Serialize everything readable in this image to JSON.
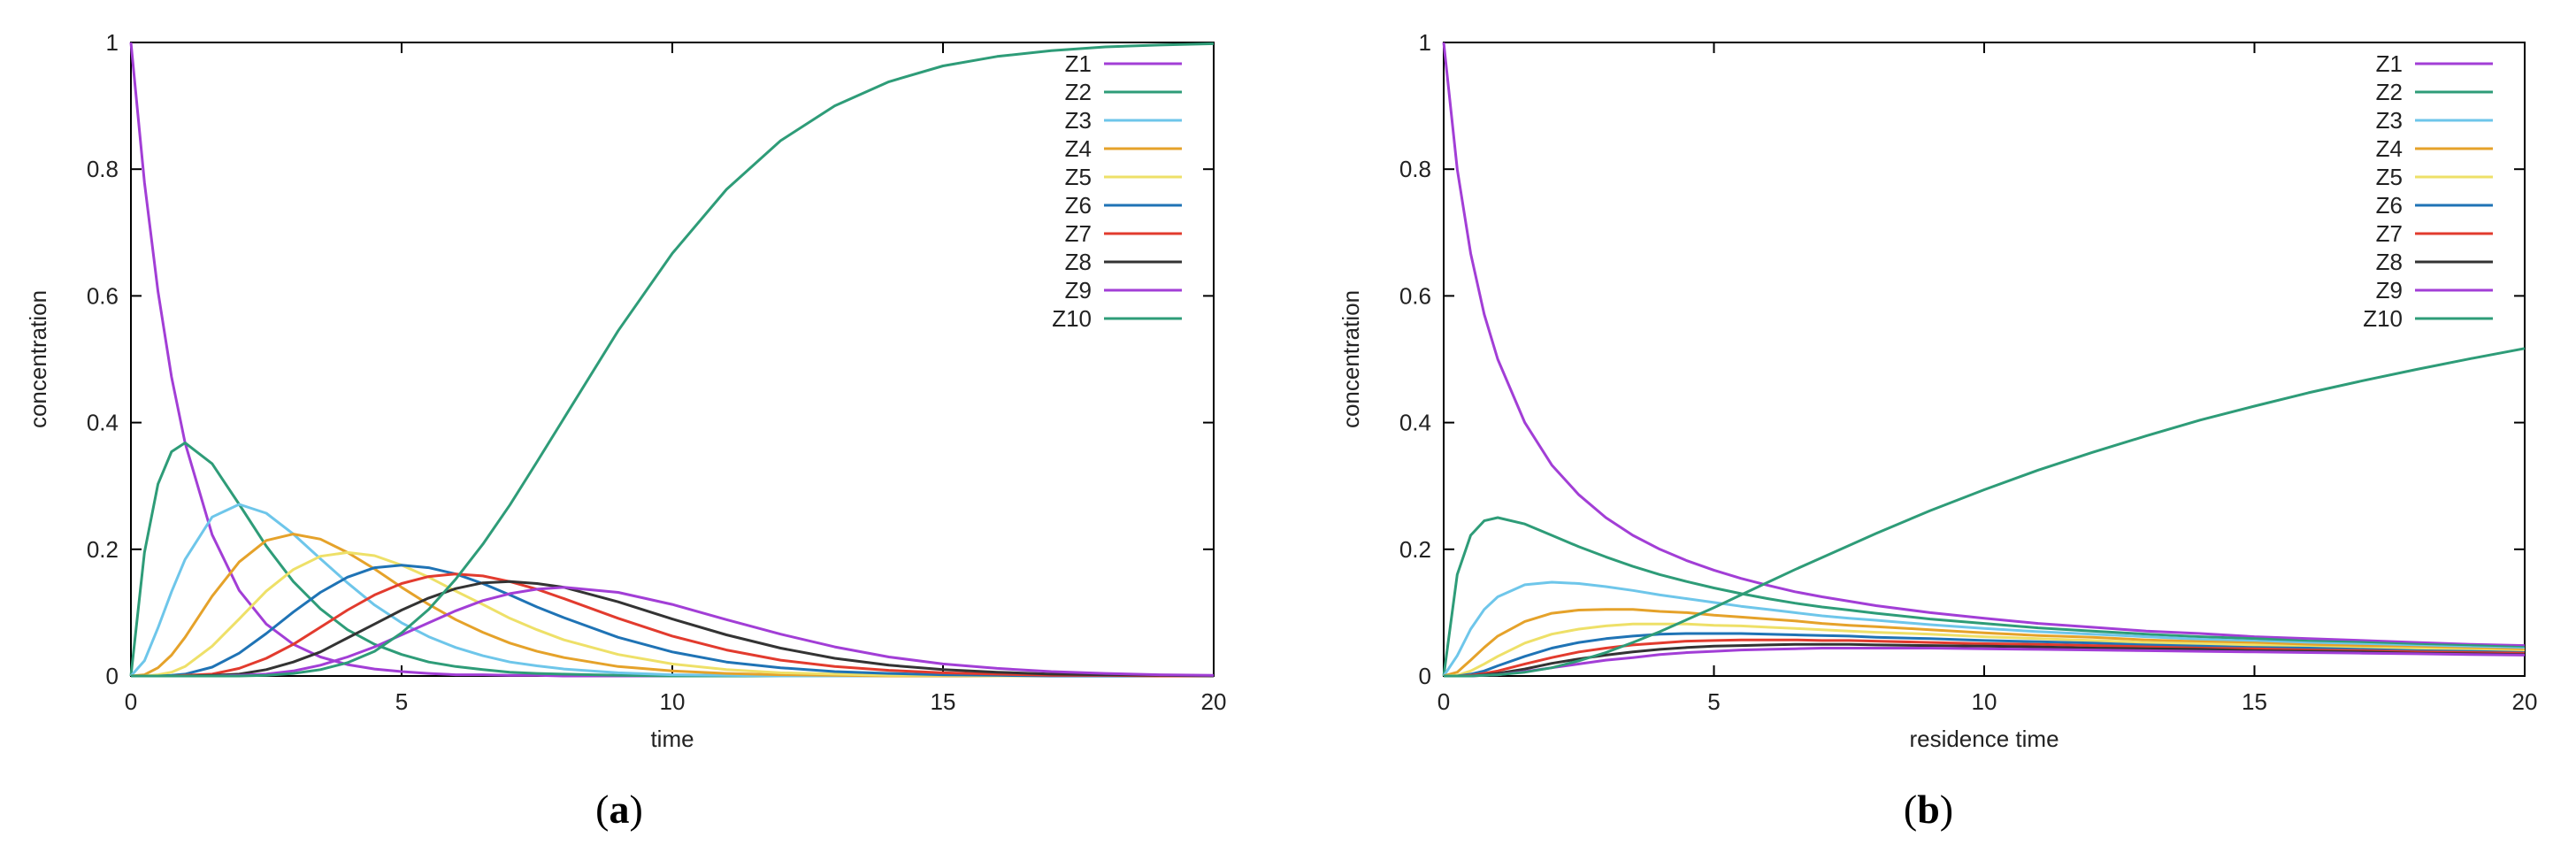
{
  "figure": {
    "panels": [
      {
        "label_open": "(",
        "label_letter": "a",
        "label_close": ")"
      },
      {
        "label_open": "(",
        "label_letter": "b",
        "label_close": ")"
      }
    ]
  },
  "colors": {
    "Z1": "#a23ed6",
    "Z2": "#2e9c78",
    "Z3": "#6ec6ea",
    "Z4": "#e5a22a",
    "Z5": "#eee068",
    "Z6": "#1f73b5",
    "Z7": "#e23b2e",
    "Z8": "#333333",
    "Z9": "#a23ed6",
    "Z10": "#2e9c78"
  },
  "chart_data": [
    {
      "type": "line",
      "title": "",
      "xlabel": "time",
      "ylabel": "concentration",
      "xlim": [
        0,
        20
      ],
      "ylim": [
        0,
        1
      ],
      "xticks": [
        0,
        5,
        10,
        15,
        20
      ],
      "yticks": [
        0,
        0.2,
        0.4,
        0.6,
        0.8,
        1
      ],
      "ytick_labels": [
        "0",
        "0.2",
        "0.4",
        "0.6",
        "0.8",
        "1"
      ],
      "legend_position": "top-right",
      "grid": false,
      "x": [
        0,
        0.25,
        0.5,
        0.75,
        1,
        1.5,
        2,
        2.5,
        3,
        3.5,
        4,
        4.5,
        5,
        5.5,
        6,
        6.5,
        7,
        7.5,
        8,
        9,
        10,
        11,
        12,
        13,
        14,
        15,
        16,
        17,
        18,
        19,
        20
      ],
      "series": [
        {
          "name": "Z1",
          "values": [
            1,
            0.779,
            0.607,
            0.472,
            0.368,
            0.223,
            0.135,
            0.082,
            0.05,
            0.03,
            0.018,
            0.011,
            0.007,
            0.004,
            0.002,
            0.002,
            0.001,
            0.001,
            0,
            0,
            0,
            0,
            0,
            0,
            0,
            0,
            0,
            0,
            0,
            0,
            0
          ]
        },
        {
          "name": "Z2",
          "values": [
            0,
            0.195,
            0.303,
            0.354,
            0.368,
            0.335,
            0.271,
            0.205,
            0.149,
            0.106,
            0.073,
            0.05,
            0.034,
            0.022,
            0.015,
            0.01,
            0.006,
            0.004,
            0.003,
            0.001,
            0,
            0,
            0,
            0,
            0,
            0,
            0,
            0,
            0,
            0,
            0
          ]
        },
        {
          "name": "Z3",
          "values": [
            0,
            0.024,
            0.076,
            0.133,
            0.184,
            0.251,
            0.271,
            0.257,
            0.224,
            0.185,
            0.147,
            0.112,
            0.084,
            0.062,
            0.045,
            0.032,
            0.022,
            0.016,
            0.011,
            0.005,
            0.002,
            0.001,
            0,
            0,
            0,
            0,
            0,
            0,
            0,
            0,
            0
          ]
        },
        {
          "name": "Z4",
          "values": [
            0,
            0.002,
            0.013,
            0.033,
            0.061,
            0.126,
            0.18,
            0.214,
            0.224,
            0.216,
            0.195,
            0.169,
            0.14,
            0.113,
            0.089,
            0.069,
            0.052,
            0.039,
            0.029,
            0.015,
            0.008,
            0.004,
            0.002,
            0.001,
            0,
            0,
            0,
            0,
            0,
            0,
            0
          ]
        },
        {
          "name": "Z5",
          "values": [
            0,
            0,
            0.002,
            0.006,
            0.015,
            0.047,
            0.09,
            0.134,
            0.168,
            0.189,
            0.195,
            0.19,
            0.175,
            0.156,
            0.134,
            0.113,
            0.091,
            0.073,
            0.057,
            0.034,
            0.019,
            0.01,
            0.005,
            0.003,
            0.001,
            0.001,
            0,
            0,
            0,
            0,
            0
          ]
        },
        {
          "name": "Z6",
          "values": [
            0,
            0,
            0,
            0.001,
            0.003,
            0.014,
            0.036,
            0.067,
            0.101,
            0.132,
            0.156,
            0.171,
            0.175,
            0.171,
            0.161,
            0.146,
            0.128,
            0.109,
            0.092,
            0.061,
            0.038,
            0.022,
            0.013,
            0.007,
            0.004,
            0.002,
            0.001,
            0,
            0,
            0,
            0
          ]
        },
        {
          "name": "Z7",
          "values": [
            0,
            0,
            0,
            0,
            0.001,
            0.003,
            0.012,
            0.028,
            0.05,
            0.077,
            0.104,
            0.128,
            0.146,
            0.157,
            0.161,
            0.158,
            0.149,
            0.137,
            0.122,
            0.091,
            0.063,
            0.041,
            0.025,
            0.015,
            0.009,
            0.005,
            0.003,
            0.001,
            0.001,
            0,
            0
          ]
        },
        {
          "name": "Z8",
          "values": [
            0,
            0,
            0,
            0,
            0,
            0.001,
            0.003,
            0.01,
            0.022,
            0.038,
            0.06,
            0.082,
            0.104,
            0.123,
            0.138,
            0.147,
            0.149,
            0.146,
            0.14,
            0.117,
            0.09,
            0.065,
            0.044,
            0.028,
            0.017,
            0.01,
            0.006,
            0.003,
            0.002,
            0.001,
            0
          ]
        },
        {
          "name": "Z9",
          "values": [
            0,
            0,
            0,
            0,
            0,
            0,
            0.001,
            0.003,
            0.008,
            0.017,
            0.03,
            0.046,
            0.065,
            0.084,
            0.103,
            0.119,
            0.13,
            0.137,
            0.14,
            0.132,
            0.113,
            0.089,
            0.066,
            0.046,
            0.03,
            0.019,
            0.012,
            0.007,
            0.004,
            0.002,
            0.001
          ]
        },
        {
          "name": "Z10",
          "values": [
            0,
            0,
            0,
            0,
            0,
            0,
            0,
            0.001,
            0.004,
            0.01,
            0.021,
            0.039,
            0.068,
            0.105,
            0.153,
            0.208,
            0.27,
            0.338,
            0.407,
            0.545,
            0.667,
            0.768,
            0.845,
            0.9,
            0.938,
            0.963,
            0.978,
            0.987,
            0.993,
            0.996,
            0.998
          ]
        }
      ]
    },
    {
      "type": "line",
      "title": "",
      "xlabel": "residence time",
      "ylabel": "concentration",
      "xlim": [
        0,
        20
      ],
      "ylim": [
        0,
        1
      ],
      "xticks": [
        0,
        5,
        10,
        15,
        20
      ],
      "yticks": [
        0,
        0.2,
        0.4,
        0.6,
        0.8,
        1
      ],
      "ytick_labels": [
        "0",
        "0.2",
        "0.4",
        "0.6",
        "0.8",
        "1"
      ],
      "legend_position": "top-right",
      "grid": false,
      "x": [
        0,
        0.25,
        0.5,
        0.75,
        1,
        1.5,
        2,
        2.5,
        3,
        3.5,
        4,
        4.5,
        5,
        5.5,
        6,
        6.5,
        7,
        7.5,
        8,
        9,
        10,
        11,
        12,
        13,
        14,
        15,
        16,
        17,
        18,
        19,
        20
      ],
      "series": [
        {
          "name": "Z1",
          "values": [
            1,
            0.8,
            0.667,
            0.571,
            0.5,
            0.4,
            0.333,
            0.286,
            0.25,
            0.222,
            0.2,
            0.182,
            0.167,
            0.154,
            0.143,
            0.133,
            0.125,
            0.118,
            0.111,
            0.1,
            0.091,
            0.083,
            0.077,
            0.071,
            0.067,
            0.062,
            0.059,
            0.056,
            0.053,
            0.05,
            0.048
          ]
        },
        {
          "name": "Z2",
          "values": [
            0,
            0.16,
            0.222,
            0.245,
            0.25,
            0.24,
            0.222,
            0.204,
            0.188,
            0.173,
            0.16,
            0.149,
            0.139,
            0.13,
            0.122,
            0.115,
            0.109,
            0.104,
            0.099,
            0.09,
            0.083,
            0.076,
            0.071,
            0.066,
            0.062,
            0.059,
            0.055,
            0.053,
            0.05,
            0.048,
            0.045
          ]
        },
        {
          "name": "Z3",
          "values": [
            0,
            0.032,
            0.074,
            0.105,
            0.125,
            0.144,
            0.148,
            0.146,
            0.141,
            0.135,
            0.128,
            0.122,
            0.116,
            0.11,
            0.105,
            0.1,
            0.095,
            0.091,
            0.088,
            0.081,
            0.075,
            0.07,
            0.066,
            0.062,
            0.058,
            0.055,
            0.052,
            0.05,
            0.047,
            0.045,
            0.043
          ]
        },
        {
          "name": "Z4",
          "values": [
            0,
            0.006,
            0.025,
            0.045,
            0.063,
            0.086,
            0.099,
            0.104,
            0.105,
            0.105,
            0.102,
            0.1,
            0.096,
            0.093,
            0.09,
            0.087,
            0.083,
            0.08,
            0.078,
            0.073,
            0.068,
            0.064,
            0.061,
            0.057,
            0.054,
            0.052,
            0.049,
            0.047,
            0.045,
            0.043,
            0.041
          ]
        },
        {
          "name": "Z5",
          "values": [
            0,
            0.001,
            0.008,
            0.019,
            0.031,
            0.052,
            0.066,
            0.074,
            0.079,
            0.082,
            0.082,
            0.082,
            0.08,
            0.079,
            0.077,
            0.075,
            0.073,
            0.071,
            0.069,
            0.066,
            0.062,
            0.059,
            0.056,
            0.053,
            0.051,
            0.049,
            0.046,
            0.044,
            0.043,
            0.041,
            0.039
          ]
        },
        {
          "name": "Z6",
          "values": [
            0,
            0,
            0.003,
            0.008,
            0.016,
            0.031,
            0.044,
            0.053,
            0.059,
            0.063,
            0.066,
            0.067,
            0.067,
            0.067,
            0.066,
            0.065,
            0.064,
            0.063,
            0.061,
            0.059,
            0.056,
            0.054,
            0.052,
            0.049,
            0.047,
            0.045,
            0.044,
            0.042,
            0.04,
            0.039,
            0.037
          ]
        },
        {
          "name": "Z7",
          "values": [
            0,
            0,
            0.001,
            0.004,
            0.008,
            0.019,
            0.029,
            0.038,
            0.044,
            0.049,
            0.052,
            0.055,
            0.056,
            0.057,
            0.057,
            0.057,
            0.056,
            0.056,
            0.055,
            0.053,
            0.051,
            0.05,
            0.048,
            0.046,
            0.044,
            0.043,
            0.041,
            0.04,
            0.038,
            0.037,
            0.036
          ]
        },
        {
          "name": "Z8",
          "values": [
            0,
            0,
            0,
            0.002,
            0.004,
            0.011,
            0.02,
            0.027,
            0.033,
            0.038,
            0.042,
            0.045,
            0.047,
            0.048,
            0.049,
            0.05,
            0.05,
            0.05,
            0.049,
            0.048,
            0.047,
            0.046,
            0.044,
            0.043,
            0.042,
            0.04,
            0.039,
            0.038,
            0.036,
            0.035,
            0.034
          ]
        },
        {
          "name": "Z9",
          "values": [
            0,
            0,
            0,
            0.001,
            0.002,
            0.007,
            0.013,
            0.019,
            0.025,
            0.029,
            0.034,
            0.037,
            0.039,
            0.041,
            0.042,
            0.043,
            0.044,
            0.044,
            0.044,
            0.044,
            0.043,
            0.042,
            0.041,
            0.04,
            0.039,
            0.038,
            0.037,
            0.036,
            0.035,
            0.034,
            0.033
          ]
        },
        {
          "name": "Z10",
          "values": [
            0,
            0,
            0,
            0.001,
            0.002,
            0.006,
            0.013,
            0.024,
            0.037,
            0.053,
            0.07,
            0.089,
            0.108,
            0.128,
            0.148,
            0.168,
            0.187,
            0.206,
            0.225,
            0.261,
            0.294,
            0.325,
            0.353,
            0.379,
            0.404,
            0.426,
            0.447,
            0.466,
            0.484,
            0.501,
            0.517
          ]
        }
      ]
    }
  ]
}
